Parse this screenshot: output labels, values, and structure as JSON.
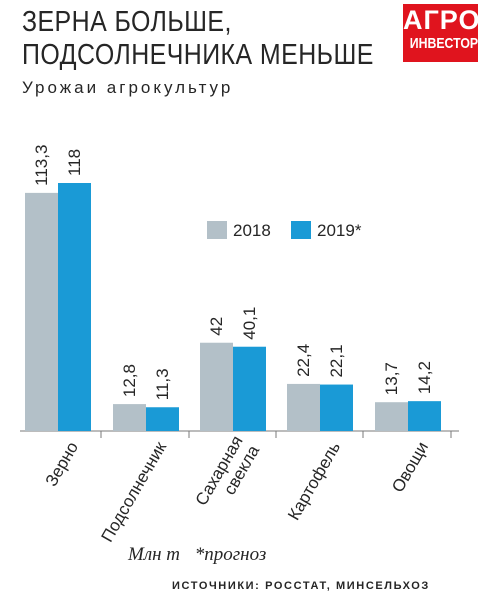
{
  "header": {
    "title_line1": "ЗЕРНА БОЛЬШЕ,",
    "title_line2": "ПОДСОЛНЕЧНИКА МЕНЬШЕ",
    "subtitle": "Урожаи агрокультур"
  },
  "logo": {
    "line1": "АГРО",
    "line2": "ИНВЕСТОР"
  },
  "footer": {
    "unit": "Млн т",
    "note": "*прогноз",
    "sources": "ИСТОЧНИКИ: РОССТАТ, МИНСЕЛЬХОЗ"
  },
  "chart_data": {
    "type": "bar",
    "categories": [
      "Зерно",
      "Подсолнечник",
      "Сахарная свекла",
      "Картофель",
      "Овощи"
    ],
    "category_lines": [
      [
        "Зерно"
      ],
      [
        "Подсолнечник"
      ],
      [
        "Сахарная",
        "свекла"
      ],
      [
        "Картофель"
      ],
      [
        "Овощи"
      ]
    ],
    "series": [
      {
        "name": "2018",
        "color": "#b3c0c8",
        "values": [
          113.3,
          12.8,
          42,
          22.4,
          13.7
        ],
        "labels": [
          "113,3",
          "12,8",
          "42",
          "22,4",
          "13,7"
        ]
      },
      {
        "name": "2019*",
        "color": "#1a9ad6",
        "values": [
          118,
          11.3,
          40.1,
          22.1,
          14.2
        ],
        "labels": [
          "118",
          "11,3",
          "40,1",
          "22,1",
          "14,2"
        ]
      }
    ],
    "ylim": [
      0,
      118
    ],
    "legend_position": "top-right",
    "grid": false
  }
}
